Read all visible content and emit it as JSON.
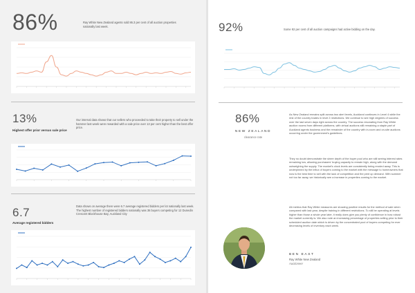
{
  "stat_auction_sold": {
    "value": "86%",
    "text": "Ray White New Zealand agents sold 86.3 per cent of all auction properties nationally last week."
  },
  "stat_bidding": {
    "value": "92%",
    "text": "Some 92 per cent of all auction campaigns had active bidding on the day."
  },
  "stat_above_price": {
    "value": "13%",
    "label": "Highest offer prior versus sale price",
    "text": "Our internal data shows that our sellers who proceeded to take their property to sell under the hammer last week were rewarded with a sale price over 13 per cent higher than the best offer price."
  },
  "stat_bidders": {
    "value": "6.7",
    "label": "Average registered bidders",
    "text": "Data shows on average there were 6.7 average registered bidders per lot nationally last week. The highest number of registered bidders nationally was 36 buyers competing for 12 Dunedin Crescent Blockhouse Bay, Auckland City"
  },
  "sidebar_stat": {
    "value": "86%",
    "tag": "NEW ZEALAND",
    "caption": "clearance rate"
  },
  "body_paragraphs": [
    "As New Zealand remains split across two alert levels, Auckland continues in Level 4 while the rest of the country trades in level 2 restrictions. We continue to see high degrees of success over the last seven days right across the country. The success resonating from Ray White auction rooms from different platforms, with virtual auctions still remaining a staple part of Auckland agents business and the remainder of the country with in-room and on-site auctions occurring under the government's guidelines.",
    "They no doubt demonstrate the sheer depth of the buyer pool who are still seeing interest rates remaining low, allowing purchasers' buying capacity to remain high, along with the demand outweighing the supply. The market's clock levels are consistently being eroded away. This is underpinned by the influx of buyers coming to the market with the message to homeowners that now is the best time to sell with the lack of competition and the pent up demand. With summer not too far away, we historically see a increase in properties coming to the market.",
    "All metrics that Ray White measures are showing positive results for the method of sale when compared with last year, despite training in different restrictions. To still be operating at levels higher than those a whole year later, it really does give you plenty of confidence in how robust the market currently is. We also note an increasing percentage of properties selling prior to their scheduled auction date which is driven by the concentrated pool of buyers competing for ever decreasing levels of inventory each week."
  ],
  "agent": {
    "name": "BEN EAST",
    "company": "Ray White New Zealand",
    "role": "Auctioneer"
  },
  "colors": {
    "chart_orange": "#f0a58b",
    "chart_blue_light": "#7cc0e0",
    "chart_blue": "#2e6fc0",
    "rule": "#bdbdbd",
    "left_bg": "#f2f2f2"
  },
  "chart_data": [
    {
      "type": "line",
      "series": [
        {
          "values": [
            60,
            61,
            60,
            62,
            64,
            62,
            78,
            88,
            70,
            58,
            56,
            60,
            64,
            62,
            60,
            58,
            56,
            58,
            62,
            64,
            60,
            60,
            62,
            60,
            58,
            60,
            62,
            60,
            61,
            60,
            62,
            63,
            60,
            59,
            61,
            62
          ]
        }
      ],
      "ylim": [
        40,
        100
      ],
      "grid": true
    },
    {
      "type": "line",
      "series": [
        {
          "values": [
            76,
            76,
            77,
            75,
            76,
            78,
            80,
            79,
            70,
            68,
            72,
            78,
            84,
            86,
            82,
            78,
            76,
            74,
            72,
            73,
            76,
            80,
            82,
            78,
            74,
            72,
            74,
            78,
            80,
            82,
            80,
            76,
            78,
            80,
            79,
            78
          ]
        }
      ],
      "ylim": [
        50,
        100
      ],
      "grid": true
    },
    {
      "type": "line",
      "series": [
        {
          "values": [
            8.2,
            7.5,
            8.6,
            7.9,
            10.3,
            9.1,
            9.9,
            7.4,
            8.7,
            10.4,
            10.9,
            11.1,
            9.6,
            10.8,
            11.0,
            11.2,
            9.6,
            10.5,
            11.8,
            13.6,
            13.5
          ]
        }
      ],
      "ylim": [
        4,
        16
      ],
      "grid": true
    },
    {
      "type": "line",
      "series": [
        {
          "values": [
            4.2,
            4.6,
            4.3,
            5.1,
            4.6,
            4.8,
            4.6,
            5.0,
            4.4,
            5.2,
            4.8,
            5.0,
            4.7,
            4.5,
            4.6,
            4.9,
            4.4,
            4.3,
            4.6,
            4.8,
            5.1,
            4.9,
            5.3,
            5.6,
            4.7,
            5.2,
            6.1,
            5.6,
            5.3,
            4.9,
            5.1,
            5.4,
            5.0,
            5.6,
            6.7
          ]
        }
      ],
      "ylim": [
        3,
        8
      ],
      "grid": true
    }
  ]
}
